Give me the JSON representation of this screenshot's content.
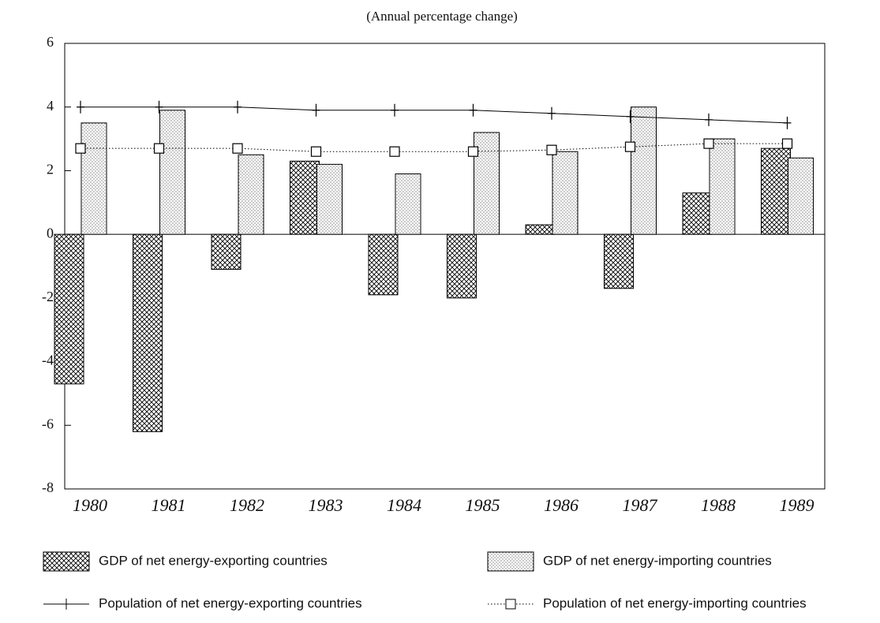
{
  "chart_data": {
    "type": "bar_line",
    "subtitle": "(Annual percentage change)",
    "categories": [
      "1980",
      "1981",
      "1982",
      "1983",
      "1984",
      "1985",
      "1986",
      "1987",
      "1988",
      "1989"
    ],
    "ylim": [
      -8,
      6
    ],
    "yticks": [
      -8,
      -6,
      -4,
      -2,
      0,
      2,
      4,
      6
    ],
    "series": [
      {
        "name": "GDP of net energy-exporting countries",
        "kind": "bar",
        "pattern": "crosshatch",
        "color": "#000000",
        "values": [
          -4.7,
          -6.2,
          -1.1,
          2.3,
          -1.9,
          -2.0,
          0.3,
          -1.7,
          1.3,
          2.7
        ]
      },
      {
        "name": "GDP of net energy-importing countries",
        "kind": "bar",
        "pattern": "dots",
        "color": "#000000",
        "values": [
          3.5,
          3.9,
          2.5,
          2.2,
          1.9,
          3.2,
          2.6,
          4.0,
          3.0,
          2.4
        ]
      },
      {
        "name": "Population of net energy-exporting countries",
        "kind": "line",
        "dash": "solid",
        "marker": "plus",
        "color": "#000000",
        "values": [
          4.0,
          4.0,
          4.0,
          3.9,
          3.9,
          3.9,
          3.8,
          3.7,
          3.6,
          3.5
        ]
      },
      {
        "name": "Population of net energy-importing countries",
        "kind": "line",
        "dash": "dotted",
        "marker": "square",
        "color": "#000000",
        "values": [
          2.7,
          2.7,
          2.7,
          2.6,
          2.6,
          2.6,
          2.65,
          2.75,
          2.85,
          2.85
        ]
      }
    ]
  }
}
